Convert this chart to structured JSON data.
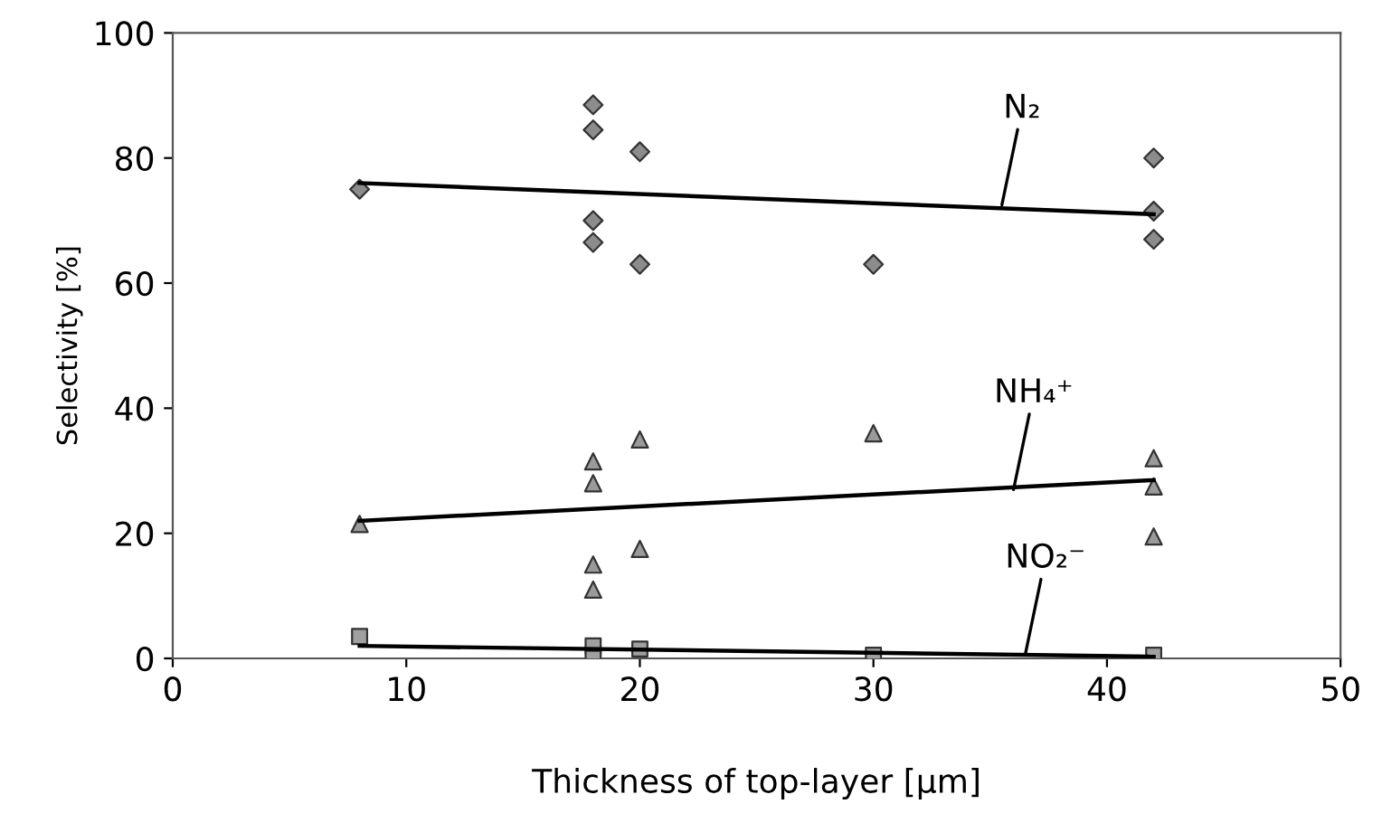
{
  "chart_data": {
    "type": "scatter",
    "xlabel": "Thickness of top-layer [µm]",
    "ylabel": "Selectivity [%]",
    "xlim": [
      0,
      50
    ],
    "ylim": [
      0,
      100
    ],
    "xticks": [
      0,
      10,
      20,
      30,
      40,
      50
    ],
    "yticks": [
      0,
      20,
      40,
      60,
      80,
      100
    ],
    "grid": false,
    "legend": false,
    "series": [
      {
        "marker": "diamond",
        "color": "#8c8c8c",
        "x": [
          8,
          18,
          18,
          18,
          18,
          20,
          20,
          30,
          42,
          42,
          42
        ],
        "values": [
          75,
          88.5,
          84.5,
          70,
          66.5,
          81,
          63,
          63,
          80,
          71.5,
          67
        ]
      },
      {
        "marker": "triangle",
        "color": "#9a9a9a",
        "x": [
          8,
          18,
          18,
          18,
          18,
          20,
          20,
          30,
          42,
          42,
          42
        ],
        "values": [
          21.5,
          31.5,
          28,
          15,
          11,
          35,
          17.5,
          36,
          32,
          27.5,
          19.5
        ]
      },
      {
        "marker": "square",
        "color": "#a0a0a0",
        "x": [
          8,
          18,
          18,
          20,
          30,
          42
        ],
        "values": [
          3.5,
          2,
          0,
          1.5,
          0.5,
          0.5
        ]
      },
      {
        "type": "line",
        "color": "#000000",
        "x": [
          8,
          42
        ],
        "values": [
          76,
          71
        ]
      },
      {
        "type": "line",
        "color": "#000000",
        "x": [
          8,
          42
        ],
        "values": [
          22,
          28.5
        ]
      },
      {
        "type": "line",
        "color": "#000000",
        "x": [
          8,
          42
        ],
        "values": [
          2,
          0.3
        ]
      }
    ],
    "annotations": [
      {
        "text": "N₂",
        "x": 35.5,
        "y": 72.5
      },
      {
        "text": "NH₄⁺",
        "x": 36,
        "y": 27
      },
      {
        "text": "NO₂⁻",
        "x": 36.5,
        "y": 0.6
      }
    ]
  }
}
